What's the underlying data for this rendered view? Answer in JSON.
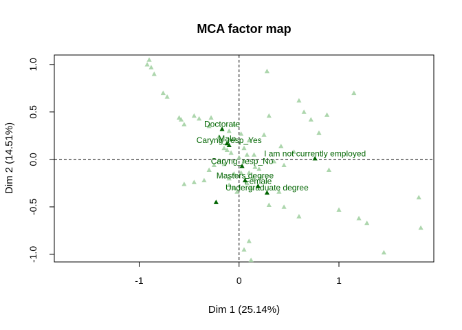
{
  "chart_data": {
    "type": "scatter",
    "title": "MCA factor map",
    "xlabel": "Dim 1 (25.14%)",
    "ylabel": "Dim 2 (14.51%)",
    "xlim": [
      -1.85,
      1.95
    ],
    "ylim": [
      -1.08,
      1.1
    ],
    "xticks": [
      -1,
      0,
      1
    ],
    "yticks": [
      -1.0,
      -0.5,
      0.0,
      0.5,
      1.0
    ],
    "xtick_labels": [
      "-1",
      "0",
      "1"
    ],
    "ytick_labels": [
      "-1.0",
      "-0.5",
      "0.0",
      "0.5",
      "1.0"
    ],
    "reference_lines": {
      "x": 0,
      "y": 0
    },
    "grid": false,
    "colors": {
      "active": "#006400",
      "supplementary": "#9fcf9f"
    },
    "active_categories": [
      {
        "label": "Doctorate",
        "x": -0.17,
        "y": 0.32
      },
      {
        "label": "Male",
        "x": -0.12,
        "y": 0.17
      },
      {
        "label": "Caryng_resp_Yes",
        "x": -0.1,
        "y": 0.15
      },
      {
        "label": "I am not currently employed",
        "x": 0.76,
        "y": 0.01
      },
      {
        "label": "Caryng_resp_No",
        "x": 0.03,
        "y": -0.07
      },
      {
        "label": "Masters degree",
        "x": 0.06,
        "y": -0.22
      },
      {
        "label": "Female",
        "x": 0.19,
        "y": -0.28
      },
      {
        "label": "Undergraduate degree",
        "x": 0.28,
        "y": -0.35
      },
      {
        "label": "",
        "x": -0.23,
        "y": -0.45
      }
    ],
    "supplementary_points": {
      "x": [
        -0.9,
        -0.92,
        -0.88,
        -0.85,
        -0.76,
        -0.72,
        -0.6,
        -0.58,
        -0.55,
        -0.45,
        -0.4,
        -0.28,
        -0.3,
        -0.2,
        -0.18,
        -0.1,
        -0.05,
        -0.15,
        -0.12,
        -0.08,
        -0.2,
        -0.25,
        -0.3,
        -0.35,
        -0.45,
        -0.55,
        -0.1,
        -0.05,
        0.02,
        0.05,
        0.08,
        0.1,
        0.15,
        0.2,
        0.25,
        0.3,
        0.35,
        0.42,
        0.45,
        0.6,
        0.65,
        0.72,
        0.8,
        0.88,
        0.9,
        1.15,
        0.55,
        0.4,
        0.28,
        0.1,
        0.05,
        0.12,
        -0.02,
        -0.1,
        0.0,
        0.02,
        0.3,
        0.45,
        0.6,
        1.0,
        1.2,
        1.28,
        1.45,
        1.8,
        1.82,
        0.08,
        0.1,
        0.14,
        0.16,
        -0.15,
        -0.05,
        0.05,
        0.12,
        0.22
      ],
      "y": [
        1.05,
        1.0,
        0.97,
        0.9,
        0.7,
        0.66,
        0.44,
        0.42,
        0.37,
        0.46,
        0.43,
        0.44,
        0.35,
        0.24,
        0.2,
        0.3,
        0.37,
        0.12,
        0.1,
        0.07,
        -0.01,
        -0.06,
        -0.11,
        -0.22,
        -0.24,
        -0.26,
        -0.2,
        -0.3,
        -0.14,
        -0.02,
        0.05,
        0.2,
        0.05,
        -0.1,
        0.26,
        0.46,
        -0.02,
        0.14,
        -0.06,
        0.62,
        0.5,
        0.42,
        0.28,
        0.47,
        -0.11,
        0.7,
        0.08,
        -0.34,
        0.93,
        -0.86,
        -0.95,
        -1.06,
        -0.34,
        -0.27,
        0.02,
        0.27,
        -0.48,
        -0.5,
        -0.6,
        -0.53,
        -0.62,
        -0.67,
        -0.98,
        -0.4,
        -0.72,
        -0.25,
        -0.14,
        -0.2,
        -0.08,
        -0.05,
        -0.15,
        0.12,
        -0.3,
        -0.18
      ]
    }
  }
}
